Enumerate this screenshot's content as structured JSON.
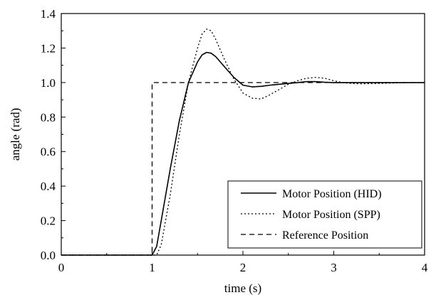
{
  "chart_data": {
    "type": "line",
    "title": "",
    "xlabel": "time (s)",
    "ylabel": "angle (rad)",
    "xlim": [
      0,
      4
    ],
    "ylim": [
      0,
      1.4
    ],
    "x_ticks": [
      "0",
      "1",
      "2",
      "3",
      "4"
    ],
    "y_ticks": [
      "0.0",
      "0.2",
      "0.4",
      "0.6",
      "0.8",
      "1.0",
      "1.2",
      "1.4"
    ],
    "grid": false,
    "legend_position": "bottom-right",
    "series": [
      {
        "name": "Motor Position (HID)",
        "style": "solid",
        "color": "#000000",
        "x": [
          0.0,
          1.0,
          1.05,
          1.1,
          1.2,
          1.3,
          1.4,
          1.5,
          1.55,
          1.6,
          1.65,
          1.7,
          1.8,
          1.9,
          2.0,
          2.1,
          2.2,
          2.3,
          2.4,
          2.5,
          2.6,
          2.7,
          2.8,
          2.9,
          3.0,
          3.2,
          3.5,
          3.8,
          4.0
        ],
        "y": [
          0.0,
          0.0,
          0.05,
          0.2,
          0.5,
          0.78,
          1.0,
          1.12,
          1.16,
          1.175,
          1.17,
          1.15,
          1.09,
          1.03,
          0.985,
          0.975,
          0.978,
          0.985,
          0.99,
          0.995,
          1.0,
          1.005,
          1.005,
          1.002,
          1.0,
          1.0,
          1.0,
          1.0,
          1.0
        ]
      },
      {
        "name": "Motor Position (SPP)",
        "style": "dotted",
        "color": "#000000",
        "x": [
          0.0,
          1.05,
          1.1,
          1.2,
          1.3,
          1.4,
          1.5,
          1.55,
          1.6,
          1.65,
          1.7,
          1.8,
          1.9,
          2.0,
          2.1,
          2.2,
          2.3,
          2.4,
          2.5,
          2.6,
          2.7,
          2.8,
          2.9,
          3.0,
          3.1,
          3.2,
          3.3,
          3.5,
          3.8,
          4.0
        ],
        "y": [
          0.0,
          0.0,
          0.06,
          0.35,
          0.7,
          1.0,
          1.2,
          1.28,
          1.31,
          1.3,
          1.25,
          1.13,
          1.02,
          0.94,
          0.91,
          0.905,
          0.93,
          0.96,
          0.99,
          1.01,
          1.025,
          1.03,
          1.025,
          1.01,
          1.0,
          0.995,
          0.993,
          0.995,
          1.0,
          1.0
        ]
      },
      {
        "name": "Reference Position",
        "style": "dashed",
        "color": "#000000",
        "x": [
          0.0,
          1.0,
          1.0,
          4.0
        ],
        "y": [
          0.0,
          0.0,
          1.0,
          1.0
        ]
      }
    ]
  }
}
